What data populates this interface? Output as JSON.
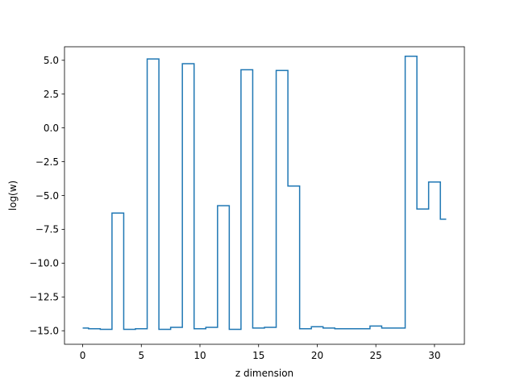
{
  "chart_data": {
    "type": "line",
    "drawstyle": "steps-mid",
    "title": "",
    "xlabel": "z dimension",
    "ylabel": "log(w)",
    "xlim": [
      -1.55,
      32.55
    ],
    "ylim": [
      -16.0,
      6.0
    ],
    "xticks": [
      0,
      5,
      10,
      15,
      20,
      25,
      30
    ],
    "xtick_labels": [
      "0",
      "5",
      "10",
      "15",
      "20",
      "25",
      "30"
    ],
    "yticks": [
      5.0,
      2.5,
      0.0,
      -2.5,
      -5.0,
      -7.5,
      -10.0,
      -12.5,
      -15.0
    ],
    "ytick_labels": [
      "5.0",
      "2.5",
      "0.0",
      "−2.5",
      "−5.0",
      "−7.5",
      "−10.0",
      "−12.5",
      "−15.0"
    ],
    "grid": false,
    "color": "#1f77b4",
    "series": [
      {
        "x": [
          0,
          1,
          2,
          3,
          4,
          5,
          6,
          7,
          8,
          9,
          10,
          11,
          12,
          13,
          14,
          15,
          16,
          17,
          18,
          19,
          20,
          21,
          22,
          23,
          24,
          25,
          26,
          27,
          28,
          29,
          30,
          31
        ],
        "values": [
          -14.8,
          -14.85,
          -14.9,
          -6.3,
          -14.9,
          -14.85,
          5.1,
          -14.9,
          -14.75,
          4.75,
          -14.85,
          -14.75,
          -5.75,
          -14.9,
          4.3,
          -14.8,
          -14.75,
          4.25,
          -4.3,
          -14.85,
          -14.7,
          -14.8,
          -14.85,
          -14.85,
          -14.85,
          -14.65,
          -14.8,
          -14.8,
          5.3,
          -6.0,
          -4.0,
          -6.75
        ]
      }
    ]
  }
}
